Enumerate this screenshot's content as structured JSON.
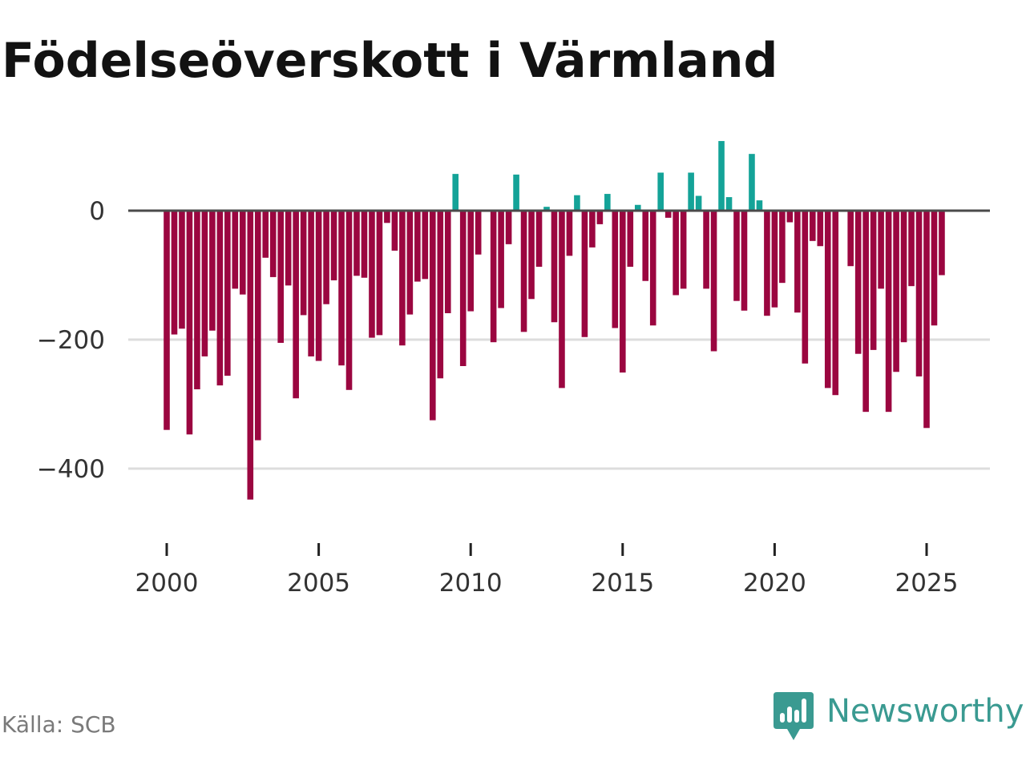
{
  "header": {
    "title": "Födelseöverskott i Värmland"
  },
  "footer": {
    "source": "Källa: SCB",
    "brand": "Newsworthy"
  },
  "colors": {
    "positive": "#14a398",
    "negative": "#9b0640",
    "zero_line": "#4a4a4a",
    "grid": "#dddddd",
    "brand": "#3a9a91"
  },
  "chart_data": {
    "type": "bar",
    "title": "Födelseöverskott i Värmland",
    "xlabel": "",
    "ylabel": "",
    "ylim": [
      -500,
      120
    ],
    "xlim": [
      1999.6,
      2027.0
    ],
    "grid": true,
    "y_ticks": [
      0,
      -200,
      -400
    ],
    "y_tick_labels": [
      "0",
      "−200",
      "−400"
    ],
    "x_ticks": [
      2000,
      2005,
      2010,
      2015,
      2020,
      2025
    ],
    "x_tick_labels": [
      "2000",
      "2005",
      "2010",
      "2015",
      "2020",
      "2025"
    ],
    "series": [
      {
        "name": "Födelseöverskott",
        "start": 2000.0,
        "step": 0.25,
        "values": [
          -340,
          -192,
          -183,
          -347,
          -277,
          -226,
          -186,
          -271,
          -256,
          -121,
          -130,
          -448,
          -356,
          -73,
          -103,
          -205,
          -116,
          -291,
          -162,
          -226,
          -233,
          -145,
          -108,
          -240,
          -278,
          -101,
          -104,
          -197,
          -193,
          -19,
          -62,
          -209,
          -161,
          -110,
          -106,
          -325,
          -260,
          -159,
          57,
          -241,
          -156,
          -68,
          0,
          -204,
          -151,
          -52,
          56,
          -188,
          -137,
          -87,
          6,
          -173,
          -275,
          -70,
          24,
          -196,
          -57,
          -21,
          26,
          -182,
          -251,
          -87,
          9,
          -109,
          -178,
          59,
          -11,
          -131,
          -121,
          59,
          23,
          -121,
          -218,
          108,
          21,
          -140,
          -155,
          88,
          16,
          -163,
          -150,
          -112,
          -18,
          -158,
          -237,
          -47,
          -55,
          -275,
          -286,
          0,
          -86,
          -222,
          -312,
          -216,
          -121,
          -312,
          -250,
          -204,
          -117,
          -257,
          -337,
          -178,
          -100
        ]
      }
    ]
  }
}
